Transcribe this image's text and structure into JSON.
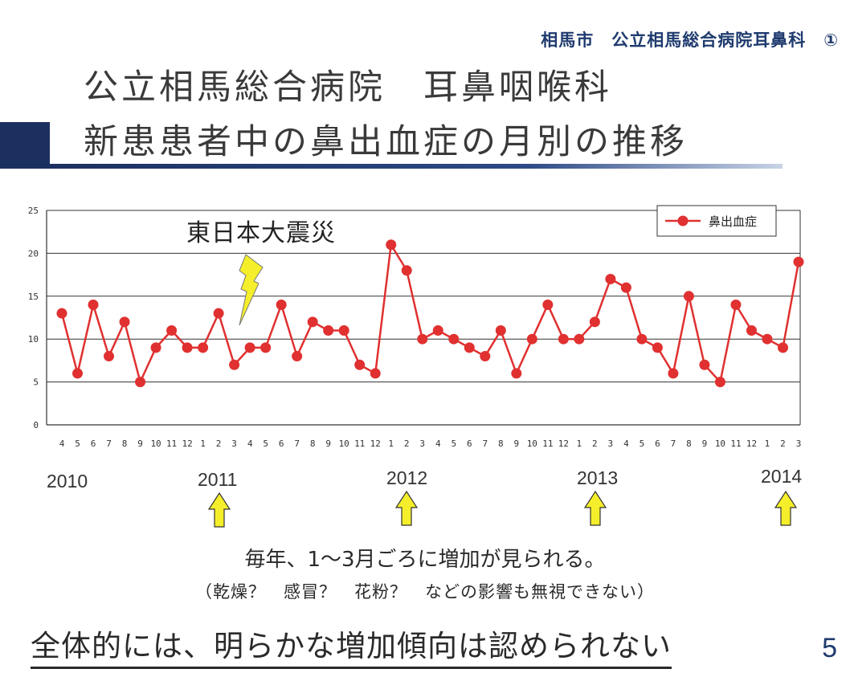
{
  "header": {
    "tag": "相馬市　公立相馬総合病院耳鼻科　①",
    "title_line1": "公立相馬総合病院　耳鼻咽喉科",
    "title_line2": "新患患者中の鼻出血症の月別の推移"
  },
  "chart_data": {
    "type": "line",
    "categories": [
      "4",
      "5",
      "6",
      "7",
      "8",
      "9",
      "10",
      "11",
      "12",
      "1",
      "2",
      "3",
      "4",
      "5",
      "6",
      "7",
      "8",
      "9",
      "10",
      "11",
      "12",
      "1",
      "2",
      "3",
      "4",
      "5",
      "6",
      "7",
      "8",
      "9",
      "10",
      "11",
      "12",
      "1",
      "2",
      "3",
      "4",
      "5",
      "6",
      "7",
      "8",
      "9",
      "10",
      "11",
      "12",
      "1",
      "2",
      "3"
    ],
    "series": [
      {
        "name": "鼻出血症",
        "color": "#e03030",
        "values": [
          13,
          6,
          14,
          8,
          12,
          5,
          9,
          11,
          9,
          9,
          13,
          7,
          9,
          9,
          14,
          8,
          12,
          11,
          11,
          7,
          6,
          21,
          18,
          10,
          11,
          10,
          9,
          8,
          11,
          6,
          10,
          14,
          10,
          10,
          12,
          17,
          16,
          10,
          9,
          6,
          15,
          7,
          5,
          14,
          11,
          10,
          9,
          19
        ]
      }
    ],
    "ylim": [
      0,
      25
    ],
    "yticks": [
      "0",
      "5",
      "10",
      "15",
      "20",
      "25"
    ],
    "grid": true,
    "legend": "top-right",
    "annotation": "東日本大震災",
    "annotation_icon": "lightning-icon",
    "annotation_color": "#f5ee2a"
  },
  "years": [
    "2010",
    "2011",
    "2012",
    "2013",
    "2014"
  ],
  "arrow_color": "#f5ee2a",
  "notes": {
    "line1": "毎年、1～3月ごろに増加が見られる。",
    "line2": "（乾燥？　感冒？　花粉？　などの影響も無視できない）"
  },
  "conclusion": "全体的には、明らかな増加傾向は認められない",
  "page_number": "5"
}
